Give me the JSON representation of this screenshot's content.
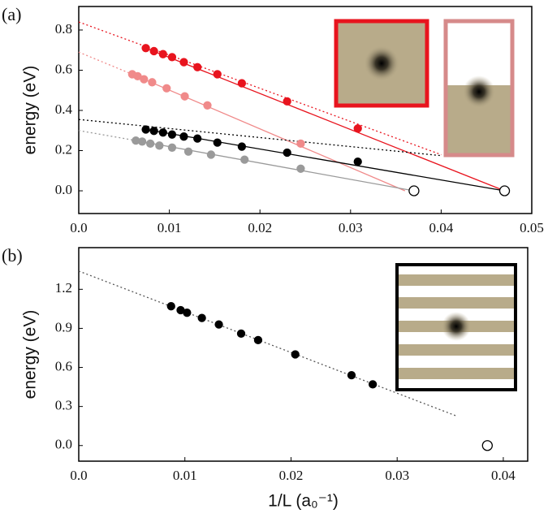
{
  "chart_data": [
    {
      "type": "scatter",
      "panel_label": "(a)",
      "ylabel": "energy (eV)",
      "xlim": [
        0,
        0.05
      ],
      "ylim": [
        -0.113,
        0.917
      ],
      "xticks": [
        {
          "value": 0,
          "label": "0.0"
        },
        0.01,
        0.02,
        0.03,
        0.04,
        0.05
      ],
      "yticks": [
        {
          "value": 0,
          "label": "0.0"
        },
        0.2,
        0.4,
        0.6,
        0.8
      ],
      "series": [
        {
          "color": "#e8141e",
          "filled": true,
          "x": [
            0.0074,
            0.0083,
            0.0093,
            0.0103,
            0.0116,
            0.0131,
            0.0153,
            0.018,
            0.023,
            0.0308
          ],
          "values": [
            0.71,
            0.695,
            0.68,
            0.665,
            0.64,
            0.615,
            0.58,
            0.535,
            0.445,
            0.31
          ]
        },
        {
          "color": "#f08a8a",
          "filled": true,
          "x": [
            0.0059,
            0.0065,
            0.0072,
            0.0081,
            0.0097,
            0.0117,
            0.0142,
            0.0245
          ],
          "values": [
            0.58,
            0.57,
            0.555,
            0.54,
            0.51,
            0.47,
            0.425,
            0.235
          ]
        },
        {
          "color": "#000000",
          "filled": true,
          "x": [
            0.0074,
            0.0083,
            0.0093,
            0.0103,
            0.0116,
            0.0131,
            0.0153,
            0.018,
            0.023,
            0.0308
          ],
          "values": [
            0.305,
            0.298,
            0.29,
            0.28,
            0.27,
            0.26,
            0.24,
            0.22,
            0.19,
            0.145
          ]
        },
        {
          "color": "#9a9a9a",
          "filled": true,
          "x": [
            0.0063,
            0.007,
            0.0079,
            0.0089,
            0.0103,
            0.0121,
            0.0146,
            0.0183,
            0.0245
          ],
          "values": [
            0.25,
            0.245,
            0.235,
            0.225,
            0.215,
            0.195,
            0.18,
            0.155,
            0.11
          ]
        },
        {
          "color": "#000000",
          "filled": false,
          "x": [
            0.037,
            0.047
          ],
          "values": [
            0,
            0
          ]
        }
      ],
      "lines": [
        {
          "color": "#e8141e",
          "dash": true,
          "x": [
            0,
            0.04
          ],
          "values": [
            0.84,
            0.18
          ]
        },
        {
          "color": "#e8141e",
          "dash": false,
          "x": [
            0.0074,
            0.047
          ],
          "values": [
            0.71,
            0
          ]
        },
        {
          "color": "#f08a8a",
          "dash": true,
          "x": [
            0,
            0.0059
          ],
          "values": [
            0.69,
            0.58
          ]
        },
        {
          "color": "#f08a8a",
          "dash": false,
          "x": [
            0.0059,
            0.036
          ],
          "values": [
            0.58,
            0
          ]
        },
        {
          "color": "#000000",
          "dash": true,
          "x": [
            0,
            0.04
          ],
          "values": [
            0.355,
            0.175
          ]
        },
        {
          "color": "#000000",
          "dash": false,
          "x": [
            0.0074,
            0.047
          ],
          "values": [
            0.305,
            0
          ]
        },
        {
          "color": "#9a9a9a",
          "dash": true,
          "x": [
            0,
            0.0063
          ],
          "values": [
            0.3,
            0.25
          ]
        },
        {
          "color": "#9a9a9a",
          "dash": false,
          "x": [
            0.0063,
            0.037
          ],
          "values": [
            0.25,
            0
          ]
        }
      ]
    },
    {
      "type": "scatter",
      "panel_label": "(b)",
      "ylabel": "energy (eV)",
      "xlabel": "1/L (a₀⁻¹)",
      "xlim": [
        0,
        0.0423
      ],
      "ylim": [
        -0.12,
        1.52
      ],
      "xticks": [
        {
          "value": 0,
          "label": "0.0"
        },
        0.01,
        0.02,
        0.03,
        0.04
      ],
      "yticks": [
        {
          "value": 0,
          "label": "0.0"
        },
        0.3,
        0.6,
        0.9,
        1.2
      ],
      "series": [
        {
          "color": "#000000",
          "filled": true,
          "x": [
            0.0087,
            0.0096,
            0.0102,
            0.0116,
            0.0132,
            0.0153,
            0.0169,
            0.0204,
            0.0257,
            0.0277
          ],
          "values": [
            1.07,
            1.04,
            1.02,
            0.98,
            0.93,
            0.86,
            0.81,
            0.7,
            0.54,
            0.47
          ]
        },
        {
          "color": "#000000",
          "filled": false,
          "x": [
            0.0385
          ],
          "values": [
            0
          ]
        }
      ],
      "lines": [
        {
          "color": "#555555",
          "dash": true,
          "x": [
            0,
            0.0355
          ],
          "values": [
            1.34,
            0.23
          ]
        }
      ]
    }
  ]
}
